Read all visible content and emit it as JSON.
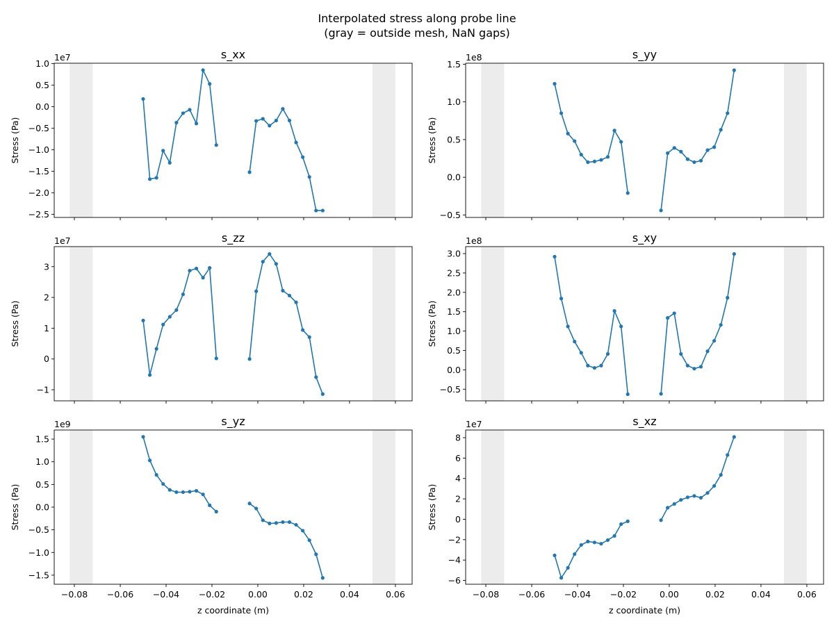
{
  "figure": {
    "title_line1": "Interpolated stress along probe line",
    "title_line2": "(gray = outside mesh, NaN gaps)"
  },
  "colors": {
    "line": "#1f77b4",
    "band": "#d9d9d9"
  },
  "chart_data": {
    "type": "line",
    "layout": "3x2 subplots",
    "xlabel": "z coordinate (m)",
    "ylabel": "Stress (Pa)",
    "xlim": [
      -0.0888,
      0.0673
    ],
    "xticks": [
      -0.08,
      -0.06,
      -0.04,
      -0.02,
      0.0,
      0.02,
      0.04,
      0.06
    ],
    "xtick_labels": [
      "−0.08",
      "−0.06",
      "−0.04",
      "−0.02",
      "0.00",
      "0.02",
      "0.04",
      "0.06"
    ],
    "gray_bands": [
      [
        -0.082,
        -0.072
      ],
      [
        0.05,
        0.06
      ]
    ],
    "x": [
      -0.05,
      -0.0471,
      -0.0442,
      -0.0413,
      -0.0384,
      -0.0355,
      -0.0326,
      -0.0297,
      -0.0268,
      -0.0239,
      -0.021,
      -0.0181,
      -0.0152,
      -0.0123,
      -0.0094,
      -0.0065,
      -0.0036,
      -0.0007,
      0.0022,
      0.0051,
      0.008,
      0.0109,
      0.0138,
      0.0167,
      0.0196,
      0.0225,
      0.0254,
      0.0283
    ],
    "panels": [
      {
        "title": "s_xx",
        "offset": "1e7",
        "ylim": [
          -2.57,
          1.01
        ],
        "yticks": [
          1.0,
          0.5,
          0.0,
          -0.5,
          -1.0,
          -1.5,
          -2.0,
          -2.5
        ],
        "ytick_labels": [
          "1.0",
          "0.5",
          "0.0",
          "−0.5",
          "−1.0",
          "−1.5",
          "−2.0",
          "−2.5"
        ],
        "values": [
          0.18,
          -1.68,
          -1.65,
          -1.02,
          -1.3,
          -0.37,
          -0.15,
          -0.07,
          -0.39,
          0.85,
          0.53,
          -0.89,
          null,
          null,
          null,
          null,
          -1.52,
          -0.33,
          -0.28,
          -0.44,
          -0.32,
          -0.05,
          -0.32,
          -0.83,
          -1.17,
          -1.63,
          -2.41,
          -2.41
        ]
      },
      {
        "title": "s_yy",
        "offset": "1e8",
        "ylim": [
          -0.533,
          1.513
        ],
        "yticks": [
          1.5,
          1.0,
          0.5,
          0.0,
          -0.5
        ],
        "ytick_labels": [
          "1.5",
          "1.0",
          "0.5",
          "0.0",
          "−0.5"
        ],
        "values": [
          1.24,
          0.85,
          0.58,
          0.48,
          0.3,
          0.2,
          0.21,
          0.23,
          0.27,
          0.62,
          0.47,
          -0.21,
          null,
          null,
          null,
          null,
          -0.44,
          0.32,
          0.39,
          0.34,
          0.24,
          0.2,
          0.22,
          0.36,
          0.4,
          0.63,
          0.85,
          1.42
        ]
      },
      {
        "title": "s_zz",
        "offset": "1e7",
        "ylim": [
          -1.36,
          3.65
        ],
        "yticks": [
          3,
          2,
          1,
          0,
          -1
        ],
        "ytick_labels": [
          "3",
          "2",
          "1",
          "0",
          "−1"
        ],
        "values": [
          1.25,
          -0.52,
          0.33,
          1.12,
          1.37,
          1.59,
          2.1,
          2.87,
          2.94,
          2.64,
          2.96,
          0.02,
          null,
          null,
          null,
          null,
          0.0,
          2.2,
          3.16,
          3.41,
          3.09,
          2.22,
          2.06,
          1.84,
          0.94,
          0.71,
          -0.59,
          -1.14
        ]
      },
      {
        "title": "s_xy",
        "offset": "1e8",
        "ylim": [
          -0.8,
          3.18
        ],
        "yticks": [
          3.0,
          2.5,
          2.0,
          1.5,
          1.0,
          0.5,
          0.0,
          -0.5
        ],
        "ytick_labels": [
          "3.0",
          "2.5",
          "2.0",
          "1.5",
          "1.0",
          "0.5",
          "0.0",
          "−0.5"
        ],
        "values": [
          2.92,
          1.84,
          1.12,
          0.73,
          0.44,
          0.11,
          0.05,
          0.11,
          0.41,
          1.52,
          1.12,
          -0.63,
          null,
          null,
          null,
          null,
          -0.62,
          1.34,
          1.46,
          0.41,
          0.11,
          0.03,
          0.08,
          0.48,
          0.75,
          1.16,
          1.86,
          2.99
        ]
      },
      {
        "title": "s_yz",
        "offset": "1e9",
        "ylim": [
          -1.7,
          1.7
        ],
        "yticks": [
          1.5,
          1.0,
          0.5,
          0.0,
          -0.5,
          -1.0,
          -1.5
        ],
        "ytick_labels": [
          "1.5",
          "1.0",
          "0.5",
          "0.0",
          "−0.5",
          "−1.0",
          "−1.5"
        ],
        "values": [
          1.55,
          1.03,
          0.71,
          0.51,
          0.38,
          0.33,
          0.33,
          0.34,
          0.36,
          0.28,
          0.04,
          -0.1,
          null,
          null,
          null,
          null,
          0.08,
          -0.03,
          -0.29,
          -0.36,
          -0.35,
          -0.33,
          -0.33,
          -0.39,
          -0.52,
          -0.73,
          -1.04,
          -1.56
        ]
      },
      {
        "title": "s_xz",
        "offset": "1e7",
        "ylim": [
          -6.37,
          8.75
        ],
        "yticks": [
          8,
          6,
          4,
          2,
          0,
          -2,
          -4,
          -6
        ],
        "ytick_labels": [
          "8",
          "6",
          "4",
          "2",
          "0",
          "−2",
          "−4",
          "−6"
        ],
        "values": [
          -3.54,
          -5.74,
          -4.76,
          -3.42,
          -2.52,
          -2.18,
          -2.27,
          -2.4,
          -2.04,
          -1.63,
          -0.48,
          -0.2,
          null,
          null,
          null,
          null,
          -0.09,
          1.13,
          1.5,
          1.9,
          2.15,
          2.29,
          2.11,
          2.58,
          3.27,
          4.35,
          6.3,
          8.07
        ]
      }
    ]
  }
}
